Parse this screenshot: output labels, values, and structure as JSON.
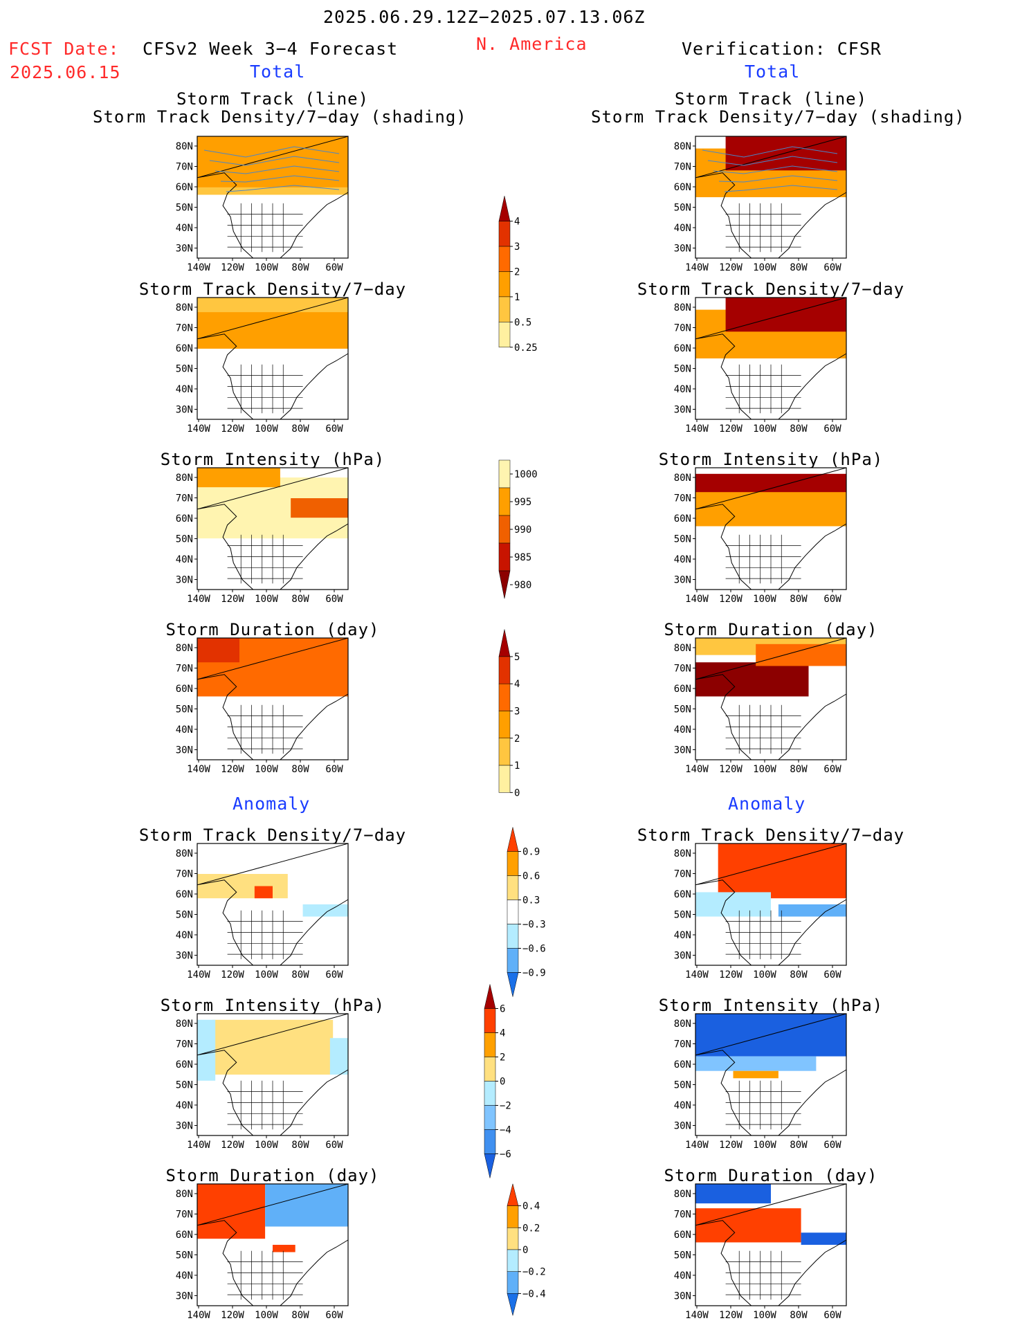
{
  "header": {
    "date_range": "2025.06.29.12Z−2025.07.13.06Z",
    "region": "N. America",
    "fcst_label": "FCST Date:",
    "fcst_date": "2025.06.15",
    "model_title": "CFSv2 Week 3−4 Forecast",
    "verification": "Verification: CFSR",
    "total_left": "Total",
    "total_right": "Total",
    "anomaly_left": "Anomaly",
    "anomaly_right": "Anomaly"
  },
  "axes": {
    "lat_labels": [
      "80N",
      "70N",
      "60N",
      "50N",
      "40N",
      "30N"
    ],
    "lon_labels": [
      "140W",
      "120W",
      "100W",
      "80W",
      "60W"
    ]
  },
  "panels": {
    "track": "Storm Track (line)\nStorm Track Density/7−day (shading)",
    "density": "Storm Track Density/7−day",
    "intensity": "Storm Intensity (hPa)",
    "duration": "Storm Duration (day)",
    "anom_density": "Storm Track Density/7−day",
    "anom_intensity": "Storm Intensity (hPa)",
    "anom_duration": "Storm Duration (day)"
  },
  "colorbars": {
    "density": {
      "labels": [
        "4",
        "3",
        "2",
        "1",
        "0.5",
        "0.25"
      ],
      "colors": [
        "#a50000",
        "#e23200",
        "#ff6a00",
        "#ff9f00",
        "#ffc640",
        "#fff0a0"
      ]
    },
    "intensity": {
      "labels": [
        "1000",
        "995",
        "990",
        "985",
        "980"
      ],
      "colors": [
        "#fff4b0",
        "#ff9f00",
        "#f06000",
        "#c81400",
        "#8c0000"
      ]
    },
    "duration": {
      "labels": [
        "5",
        "4",
        "3",
        "2",
        "1",
        "0"
      ],
      "colors": [
        "#a50000",
        "#e23200",
        "#ff6a00",
        "#ff9f00",
        "#ffc640",
        "#fff0a0"
      ]
    },
    "anom_density": {
      "labels": [
        "0.9",
        "0.6",
        "0.3",
        "−0.3",
        "−0.6",
        "−0.9"
      ],
      "colors": [
        "#ff4000",
        "#ffa000",
        "#ffe080",
        "#ffffff",
        "#b4ecff",
        "#60b0f8",
        "#1a70e8"
      ]
    },
    "anom_intensity": {
      "labels": [
        "6",
        "4",
        "2",
        "0",
        "−2",
        "−4",
        "−6"
      ],
      "colors": [
        "#a50000",
        "#ff4000",
        "#ffa000",
        "#ffe080",
        "#b4ecff",
        "#80c4ff",
        "#4090f0",
        "#1a60e0"
      ]
    },
    "anom_duration": {
      "labels": [
        "0.4",
        "0.2",
        "0",
        "−0.2",
        "−0.4"
      ],
      "colors": [
        "#ff4000",
        "#ffa000",
        "#ffe080",
        "#b4ecff",
        "#60b0f8",
        "#1a70e8"
      ]
    }
  }
}
